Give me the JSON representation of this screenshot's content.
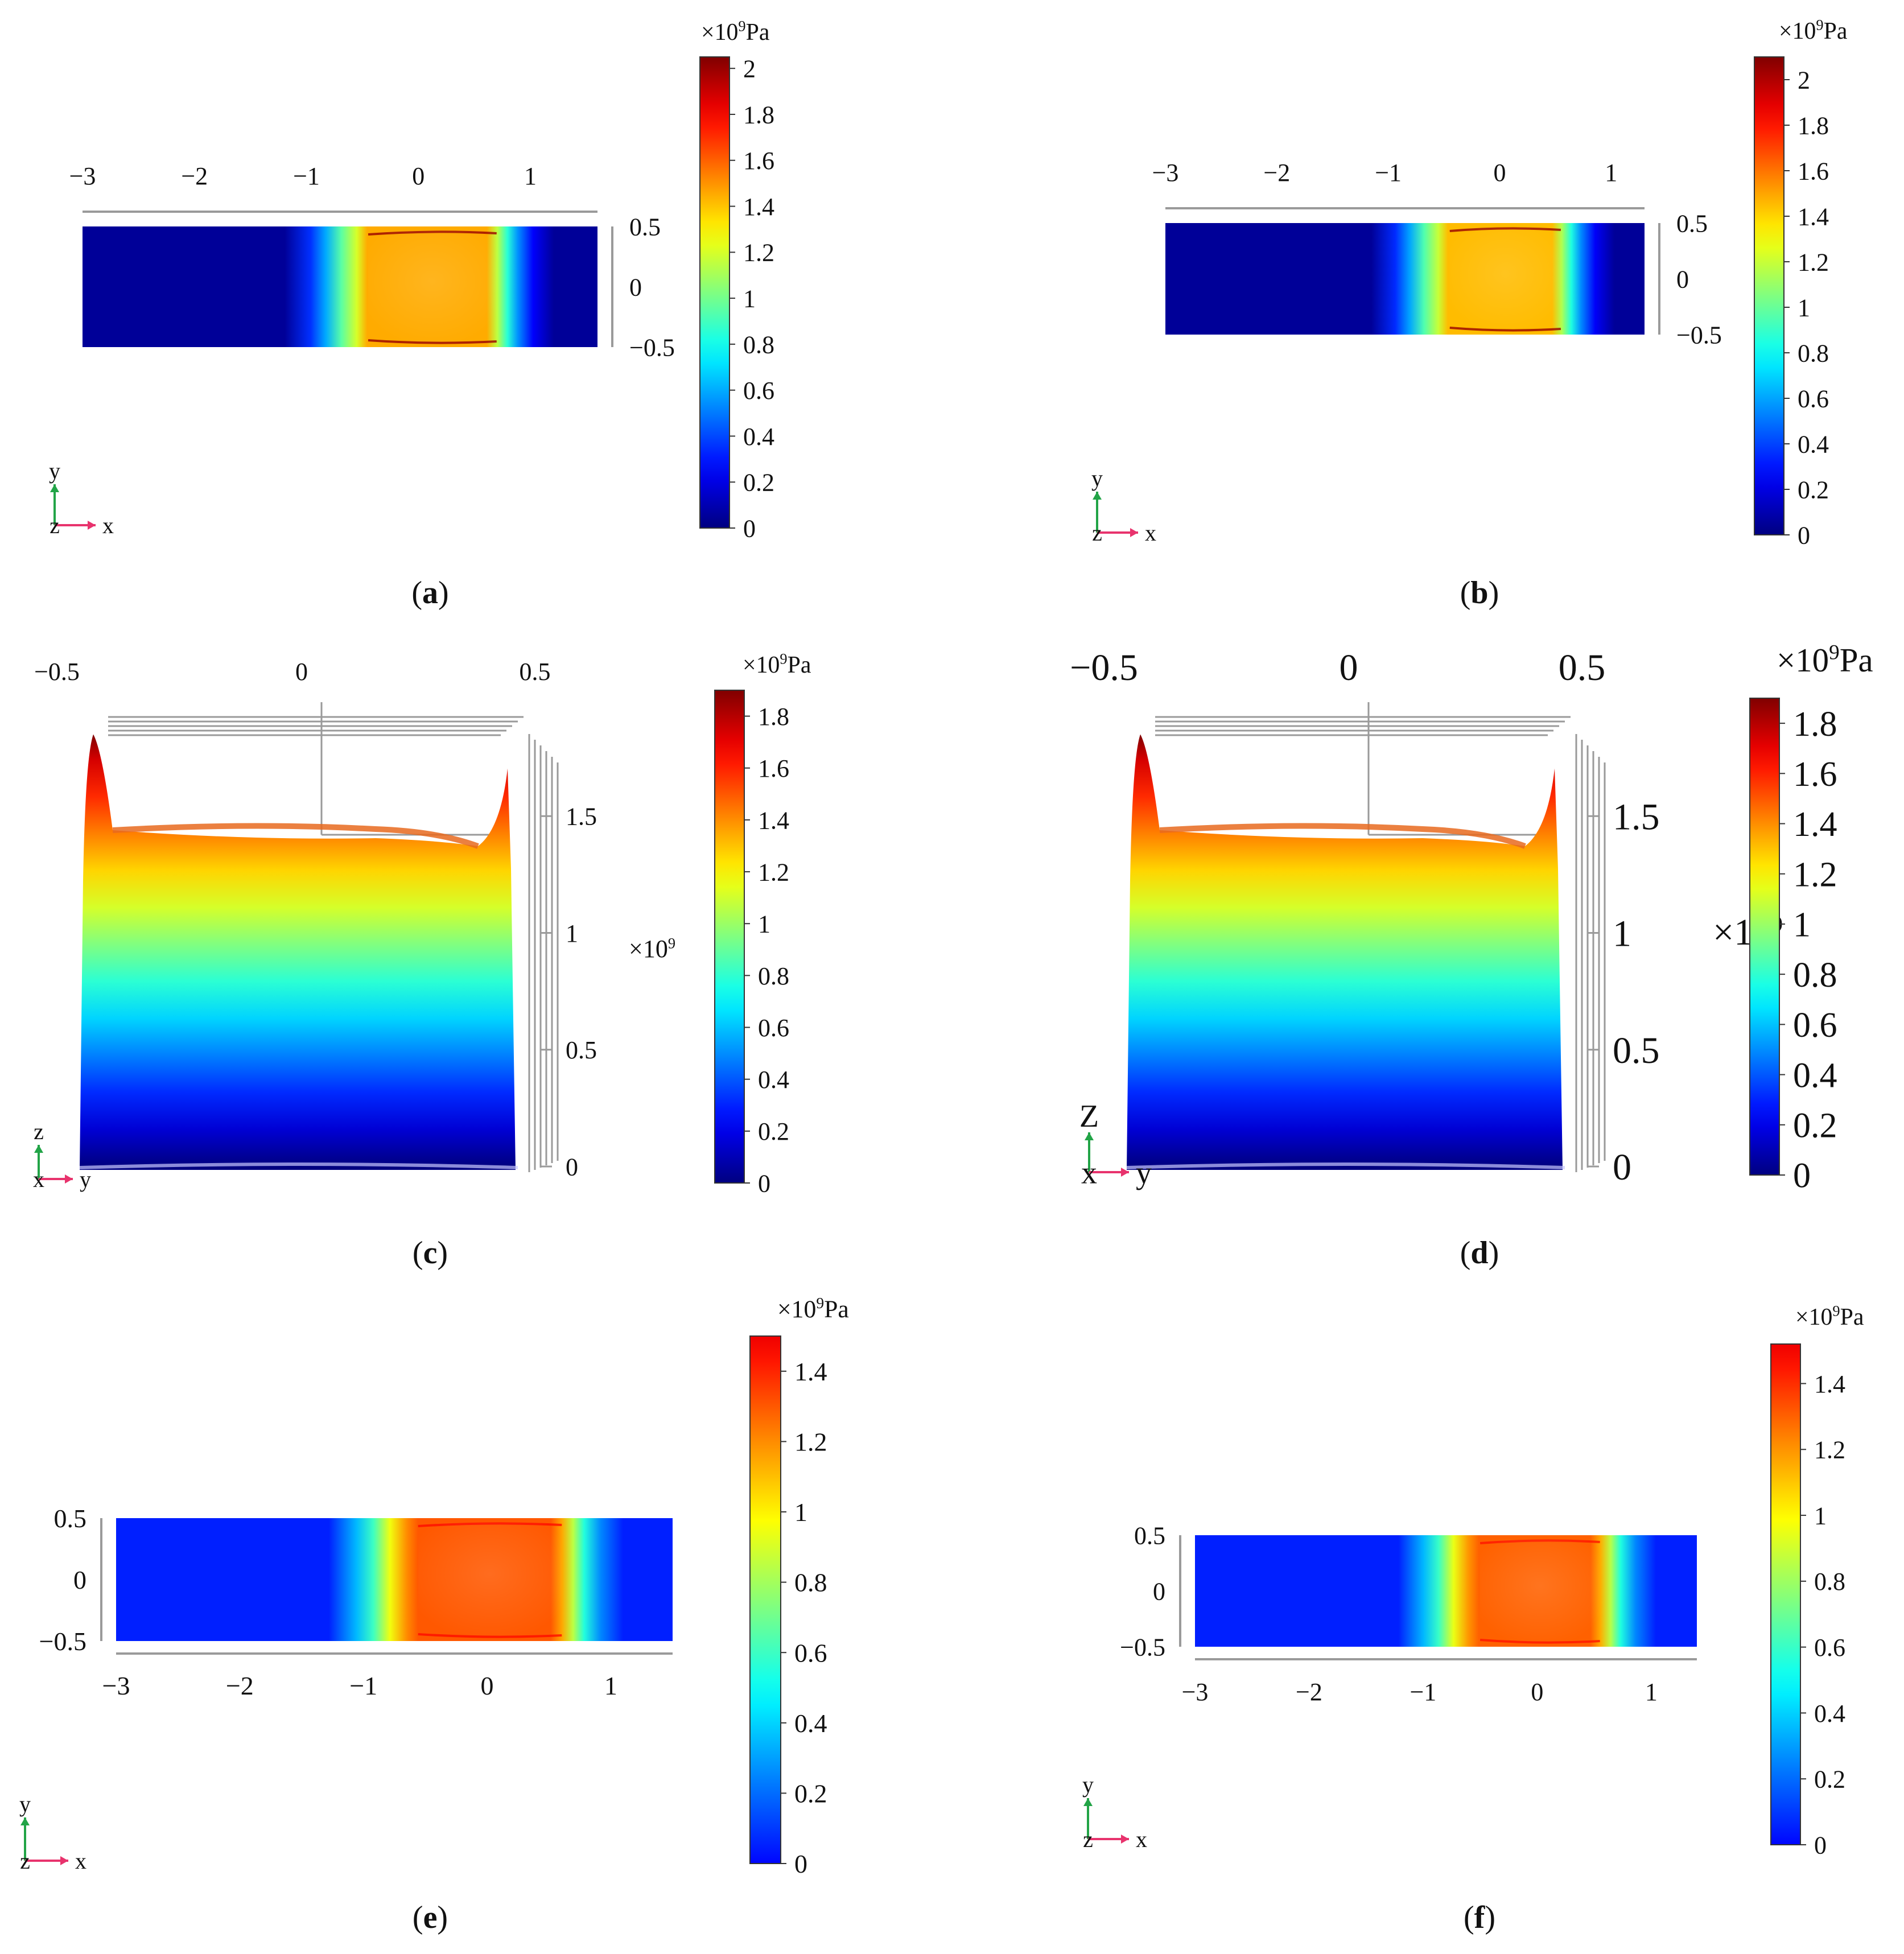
{
  "figure": {
    "panels": [
      "a",
      "b",
      "c",
      "d",
      "e",
      "f"
    ]
  },
  "colors": {
    "jet": [
      "#00007f",
      "#0000ff",
      "#007fff",
      "#00ffff",
      "#7fff7f",
      "#ffff00",
      "#ff7f00",
      "#ff0000",
      "#7f0000"
    ],
    "axis": "#9a9a9a",
    "triad_x": "#e8336d",
    "triad_y": "#22a447",
    "triad_z": "#2a8fd0"
  },
  "chart_data": [
    {
      "id": "a",
      "type": "heatmap",
      "view": "xy",
      "panel_label": "a",
      "x_ticks": [
        "−3",
        "−2",
        "−1",
        "0",
        "1"
      ],
      "y_ticks": [
        "0.5",
        "0",
        "−0.5"
      ],
      "xlim": [
        -3,
        1.6
      ],
      "ylim": [
        -0.5,
        0.5
      ],
      "colorbar": {
        "unit_prefix": "×10",
        "unit_exp": "9",
        "unit_suffix": "Pa",
        "ticks": [
          "2",
          "1.8",
          "1.6",
          "1.4",
          "1.2",
          "1",
          "0.8",
          "0.6",
          "0.4",
          "0.2",
          "0"
        ],
        "range": [
          0,
          2.05
        ],
        "colormap": "jet-dark"
      },
      "field": {
        "background": 0.05,
        "peak_region_x": [
          -0.55,
          0.75
        ],
        "peak_value": 1.45,
        "edge_max": 2.0
      },
      "triad": [
        "y",
        "z",
        "x"
      ]
    },
    {
      "id": "b",
      "type": "heatmap",
      "view": "xy",
      "panel_label": "b",
      "x_ticks": [
        "−3",
        "−2",
        "−1",
        "0",
        "1"
      ],
      "y_ticks": [
        "0.5",
        "0",
        "−0.5"
      ],
      "xlim": [
        -3,
        1.3
      ],
      "ylim": [
        -0.5,
        0.5
      ],
      "colorbar": {
        "unit_prefix": "×10",
        "unit_exp": "9",
        "unit_suffix": "Pa",
        "ticks": [
          "2",
          "1.8",
          "1.6",
          "1.4",
          "1.2",
          "1",
          "0.8",
          "0.6",
          "0.4",
          "0.2",
          "0"
        ],
        "range": [
          0,
          2.1
        ],
        "colormap": "jet-dark"
      },
      "field": {
        "background": 0.05,
        "peak_region_x": [
          -0.55,
          0.6
        ],
        "peak_value": 1.45,
        "edge_max": 2.05
      },
      "triad": [
        "y",
        "z",
        "x"
      ]
    },
    {
      "id": "c",
      "type": "area",
      "view": "yz-3d",
      "panel_label": "c",
      "y_ticks_top": [
        "−0.5",
        "0",
        "0.5"
      ],
      "z_ticks": [
        "1.5",
        "1",
        "0.5",
        "0"
      ],
      "z_scale_label_prefix": "×10",
      "z_scale_label_exp": "9",
      "ylim": [
        -0.5,
        0.5
      ],
      "zlim": [
        0,
        1.9
      ],
      "profile": {
        "plateau": 1.42,
        "edge_peak": 1.85
      },
      "colorbar": {
        "unit_prefix": "×10",
        "unit_exp": "9",
        "unit_suffix": "Pa",
        "ticks": [
          "1.8",
          "1.6",
          "1.4",
          "1.2",
          "1",
          "0.8",
          "0.6",
          "0.4",
          "0.2",
          "0"
        ],
        "range": [
          0,
          1.9
        ],
        "colormap": "jet-dark"
      },
      "triad": [
        "z",
        "x",
        "y"
      ]
    },
    {
      "id": "d",
      "type": "area",
      "view": "yz-3d",
      "panel_label": "d",
      "y_ticks_top": [
        "−0.5",
        "0",
        "0.5"
      ],
      "z_ticks": [
        "1.5",
        "1",
        "0.5",
        "0"
      ],
      "z_scale_label_prefix": "×10",
      "z_scale_label_exp": "9",
      "ylim": [
        -0.5,
        0.5
      ],
      "zlim": [
        0,
        1.9
      ],
      "profile": {
        "plateau": 1.42,
        "edge_peak": 1.85
      },
      "colorbar": {
        "unit_prefix": "×10",
        "unit_exp": "9",
        "unit_suffix": "Pa",
        "ticks": [
          "1.8",
          "1.6",
          "1.4",
          "1.2",
          "1",
          "0.8",
          "0.6",
          "0.4",
          "0.2",
          "0"
        ],
        "range": [
          0,
          1.9
        ],
        "colormap": "jet-dark"
      },
      "triad": [
        "Z",
        "x",
        "y"
      ]
    },
    {
      "id": "e",
      "type": "heatmap",
      "view": "xy",
      "panel_label": "e",
      "x_ticks": [
        "−3",
        "−2",
        "−1",
        "0",
        "1"
      ],
      "y_ticks": [
        "0.5",
        "0",
        "−0.5"
      ],
      "xlim": [
        -3,
        1.5
      ],
      "ylim": [
        -0.5,
        0.5
      ],
      "colorbar": {
        "unit_prefix": "×10",
        "unit_exp": "9",
        "unit_suffix": "Pa",
        "ticks": [
          "1.4",
          "1.2",
          "1",
          "0.8",
          "0.6",
          "0.4",
          "0.2",
          "0"
        ],
        "range": [
          0,
          1.5
        ],
        "colormap": "jet-light"
      },
      "field": {
        "background": 0.05,
        "peak_region_x": [
          -0.65,
          0.65
        ],
        "peak_value": 1.3,
        "edge_max": 1.45
      },
      "triad": [
        "y",
        "z",
        "x"
      ]
    },
    {
      "id": "f",
      "type": "heatmap",
      "view": "xy",
      "panel_label": "f",
      "x_ticks": [
        "−3",
        "−2",
        "−1",
        "0",
        "1"
      ],
      "y_ticks": [
        "0.5",
        "0",
        "−0.5"
      ],
      "xlim": [
        -3,
        1.4
      ],
      "ylim": [
        -0.5,
        0.5
      ],
      "colorbar": {
        "unit_prefix": "×10",
        "unit_exp": "9",
        "unit_suffix": "Pa",
        "ticks": [
          "1.4",
          "1.2",
          "1",
          "0.8",
          "0.6",
          "0.4",
          "0.2",
          "0"
        ],
        "range": [
          0,
          1.52
        ],
        "colormap": "jet-light"
      },
      "field": {
        "background": 0.05,
        "peak_region_x": [
          -0.6,
          0.6
        ],
        "peak_value": 1.3,
        "edge_max": 1.45
      },
      "triad": [
        "y",
        "z",
        "x"
      ]
    }
  ]
}
